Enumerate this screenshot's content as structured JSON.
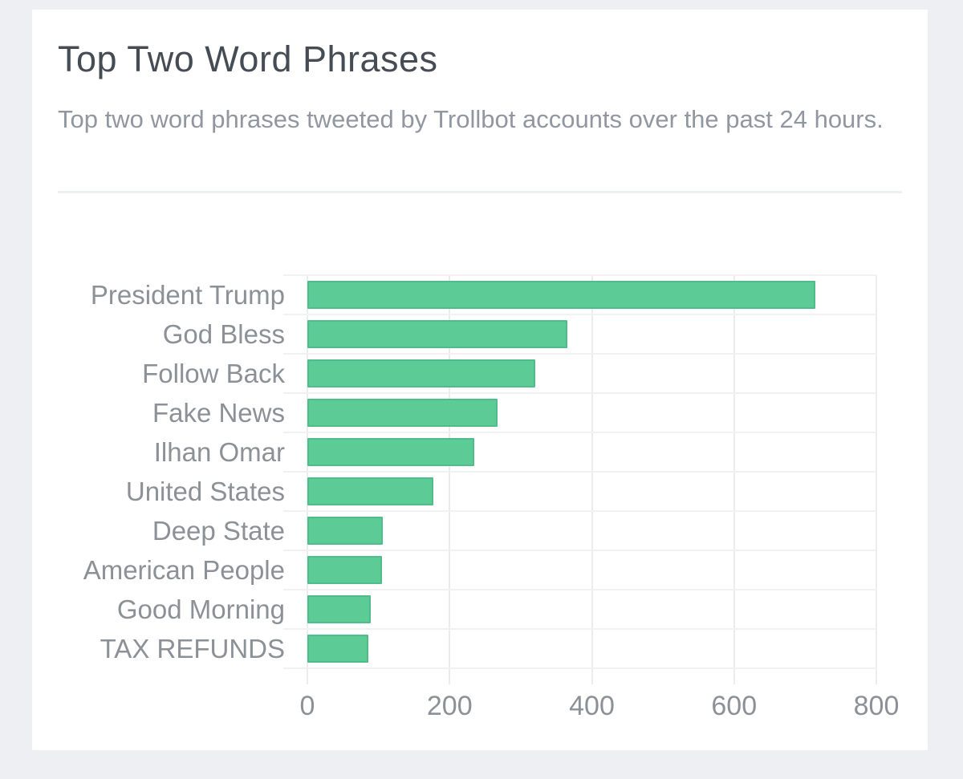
{
  "card": {
    "title": "Top Two Word Phrases",
    "subtitle": "Top two word phrases tweeted by Trollbot accounts over the past 24 hours."
  },
  "chart_data": {
    "type": "bar",
    "orientation": "horizontal",
    "title": "Top Two Word Phrases",
    "xlabel": "",
    "ylabel": "",
    "categories": [
      "President Trump",
      "God Bless",
      "Follow Back",
      "Fake News",
      "Ilhan Omar",
      "United States",
      "Deep State",
      "American People",
      "Good Morning",
      "TAX REFUNDS"
    ],
    "values": [
      714,
      366,
      320,
      267,
      235,
      177,
      106,
      105,
      89,
      86
    ],
    "xlim": [
      0,
      800
    ],
    "xticks": [
      0,
      200,
      400,
      600,
      800
    ],
    "grid": true,
    "legend": "none",
    "bar_color": "#5dcb96",
    "bar_border_color": "#4fbd8a"
  },
  "colors": {
    "page_bg": "#edeff2",
    "card_bg": "#ffffff",
    "title_text": "#454c54",
    "subtitle_text": "#9097a0",
    "axis_text": "#8b9197",
    "vgrid": "#ececec",
    "hgrid": "#f1f1f2",
    "divider": "#eef1f4"
  }
}
